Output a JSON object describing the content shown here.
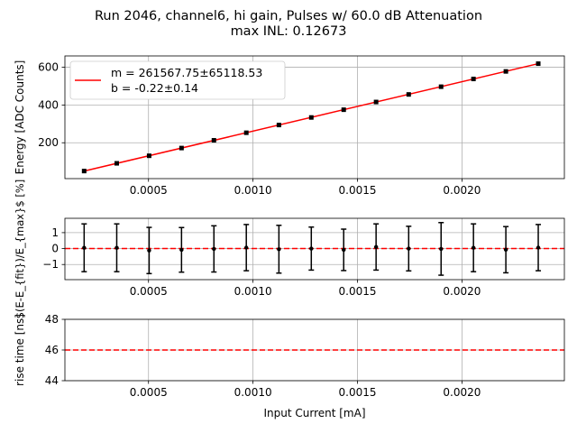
{
  "title_line1": "Run 2046, channel6, hi gain, Pulses w/ 60.0 dB Attenuation",
  "title_line2": "max INL: 0.12673",
  "chart_data": [
    {
      "type": "scatter",
      "panel": "energy",
      "ylabel": "Energy [ADC Counts]",
      "xlim": [
        0.0001,
        0.00249
      ],
      "ylim": [
        10,
        660
      ],
      "xticks": [
        0.0005,
        0.001,
        0.0015,
        0.002
      ],
      "xtick_labels": [
        "0.0005",
        "0.0010",
        "0.0015",
        "0.0020"
      ],
      "yticks": [
        200,
        400,
        600
      ],
      "ytick_labels": [
        "200",
        "400",
        "600"
      ],
      "grid": true,
      "legend_position": "upper-left",
      "legend": [
        "m = 261567.75±65118.53",
        "b = -0.22±0.14"
      ],
      "fit_color": "#ff0000",
      "point_color": "#000000",
      "x": [
        0.000192,
        0.000348,
        0.000503,
        0.000658,
        0.000813,
        0.000968,
        0.001124,
        0.001279,
        0.001434,
        0.001589,
        0.001745,
        0.0019,
        0.002055,
        0.00221,
        0.002365
      ],
      "y": [
        50,
        91,
        131,
        172,
        213,
        253,
        294,
        334,
        375,
        416,
        456,
        497,
        538,
        578,
        619
      ],
      "fit": {
        "x": [
          0.000192,
          0.002365
        ],
        "y": [
          50,
          619
        ]
      }
    },
    {
      "type": "scatter",
      "panel": "inl",
      "ylabel": "$(E-E_{fit})/E_{max}$ [%]",
      "xlim": [
        0.0001,
        0.00249
      ],
      "ylim": [
        -1.95,
        1.9
      ],
      "xticks": [
        0.0005,
        0.001,
        0.0015,
        0.002
      ],
      "xtick_labels": [
        "0.0005",
        "0.0010",
        "0.0015",
        "0.0020"
      ],
      "yticks": [
        -1,
        0,
        1
      ],
      "ytick_labels": [
        "−1",
        "0",
        "1"
      ],
      "grid": true,
      "reference_line": 0,
      "reference_color": "#ff0000",
      "x": [
        0.000192,
        0.000348,
        0.000503,
        0.000658,
        0.000813,
        0.000968,
        0.001124,
        0.001279,
        0.001434,
        0.001589,
        0.001745,
        0.0019,
        0.002055,
        0.00221,
        0.002365
      ],
      "y": [
        0.05,
        0.05,
        -0.12,
        -0.08,
        -0.02,
        0.06,
        -0.04,
        0.0,
        -0.08,
        0.1,
        0.0,
        -0.02,
        0.05,
        -0.07,
        0.06
      ],
      "err": [
        1.5,
        1.5,
        1.45,
        1.4,
        1.45,
        1.45,
        1.5,
        1.35,
        1.3,
        1.45,
        1.4,
        1.65,
        1.5,
        1.45,
        1.45
      ]
    },
    {
      "type": "line",
      "panel": "rise",
      "ylabel": "rise time [ns]",
      "xlabel": "Input Current [mA]",
      "xlim": [
        0.0001,
        0.00249
      ],
      "ylim": [
        44,
        48
      ],
      "xticks": [
        0.0005,
        0.001,
        0.0015,
        0.002
      ],
      "xtick_labels": [
        "0.0005",
        "0.0010",
        "0.0015",
        "0.0020"
      ],
      "yticks": [
        44,
        46,
        48
      ],
      "ytick_labels": [
        "44",
        "46",
        "48"
      ],
      "grid": true,
      "reference_line": 46,
      "reference_color": "#ff0000"
    }
  ]
}
